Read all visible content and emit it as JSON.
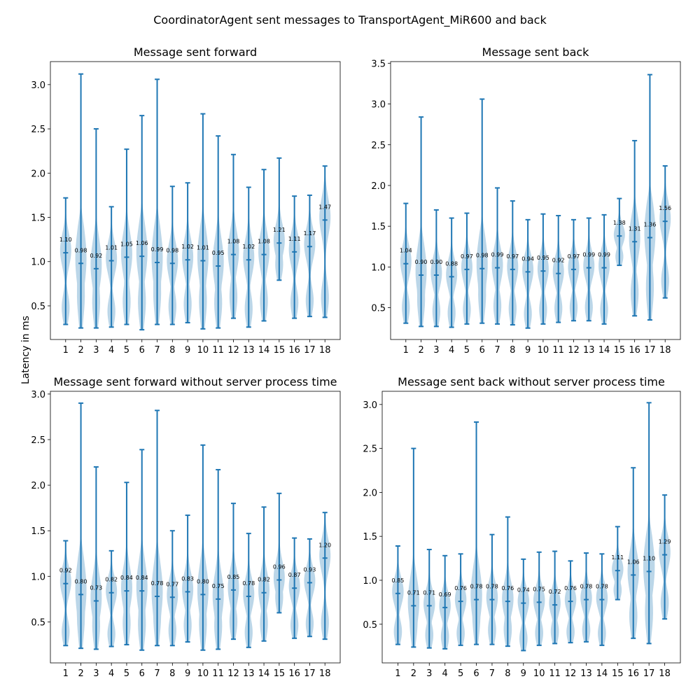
{
  "figure": {
    "suptitle": "CoordinatorAgent sent messages to TransportAgent_MiR600 and back",
    "shared_ylabel": "Latency in ms"
  },
  "colors": {
    "violin_fill": "#1f77b4",
    "violin_fill_opacity": 0.3,
    "line": "#1f77b4"
  },
  "chart_data": [
    {
      "type": "violin",
      "title": "Message sent forward",
      "xlabel": "",
      "categories": [
        "1",
        "2",
        "3",
        "4",
        "5",
        "6",
        "7",
        "8",
        "9",
        "10",
        "11",
        "12",
        "13",
        "14",
        "15",
        "16",
        "17",
        "18"
      ],
      "ylim": [
        0.12,
        3.26
      ],
      "yticks": [
        0.5,
        1.0,
        1.5,
        2.0,
        2.5,
        3.0
      ],
      "ytick_labels": [
        "0.5",
        "1.0",
        "1.5",
        "2.0",
        "2.5",
        "3.0"
      ],
      "min": [
        0.29,
        0.25,
        0.25,
        0.26,
        0.29,
        0.23,
        0.29,
        0.29,
        0.31,
        0.24,
        0.25,
        0.36,
        0.26,
        0.33,
        0.79,
        0.36,
        0.38,
        0.37
      ],
      "max": [
        1.72,
        3.12,
        2.5,
        1.62,
        2.27,
        2.65,
        3.06,
        1.85,
        1.89,
        2.67,
        2.42,
        2.21,
        1.84,
        2.04,
        2.17,
        1.74,
        1.75,
        2.08
      ],
      "mean": [
        1.1,
        0.98,
        0.92,
        1.01,
        1.05,
        1.06,
        0.99,
        0.98,
        1.02,
        1.01,
        0.95,
        1.08,
        1.02,
        1.08,
        1.21,
        1.11,
        1.17,
        1.47
      ],
      "labels": [
        "1.10",
        "0.98",
        "0.92",
        "1.01",
        "1.05",
        "1.06",
        "0.99",
        "0.98",
        "1.02",
        "1.01",
        "0.95",
        "1.08",
        "1.02",
        "1.08",
        "1.21",
        "1.11",
        "1.17",
        "1.47"
      ]
    },
    {
      "type": "violin",
      "title": "Message sent back",
      "xlabel": "",
      "categories": [
        "1",
        "2",
        "3",
        "4",
        "5",
        "6",
        "7",
        "8",
        "9",
        "10",
        "11",
        "12",
        "13",
        "14",
        "15",
        "16",
        "17",
        "18"
      ],
      "ylim": [
        0.11,
        3.52
      ],
      "yticks": [
        0.5,
        1.0,
        1.5,
        2.0,
        2.5,
        3.0,
        3.5
      ],
      "ytick_labels": [
        "0.5",
        "1.0",
        "1.5",
        "2.0",
        "2.5",
        "3.0",
        "3.5"
      ],
      "min": [
        0.31,
        0.27,
        0.27,
        0.26,
        0.3,
        0.31,
        0.3,
        0.29,
        0.25,
        0.3,
        0.32,
        0.34,
        0.34,
        0.3,
        1.02,
        0.4,
        0.35,
        0.62
      ],
      "max": [
        1.78,
        2.84,
        1.7,
        1.6,
        1.66,
        3.06,
        1.97,
        1.81,
        1.58,
        1.65,
        1.63,
        1.58,
        1.6,
        1.64,
        1.84,
        2.55,
        3.36,
        2.24
      ],
      "mean": [
        1.04,
        0.9,
        0.9,
        0.88,
        0.97,
        0.98,
        0.99,
        0.97,
        0.94,
        0.95,
        0.92,
        0.97,
        0.99,
        0.99,
        1.38,
        1.31,
        1.36,
        1.56
      ],
      "labels": [
        "1.04",
        "0.90",
        "0.90",
        "0.88",
        "0.97",
        "0.98",
        "0.99",
        "0.97",
        "0.94",
        "0.95",
        "0.92",
        "0.97",
        "0.99",
        "0.99",
        "1.38",
        "1.31",
        "1.36",
        "1.56"
      ]
    },
    {
      "type": "violin",
      "title": "Message sent forward without server process time",
      "xlabel": "",
      "categories": [
        "1",
        "2",
        "3",
        "4",
        "5",
        "6",
        "7",
        "8",
        "9",
        "10",
        "11",
        "12",
        "13",
        "14",
        "15",
        "16",
        "17",
        "18"
      ],
      "ylim": [
        0.05,
        3.03
      ],
      "yticks": [
        0.5,
        1.0,
        1.5,
        2.0,
        2.5,
        3.0
      ],
      "ytick_labels": [
        "0.5",
        "1.0",
        "1.5",
        "2.0",
        "2.5",
        "3.0"
      ],
      "min": [
        0.24,
        0.21,
        0.2,
        0.23,
        0.25,
        0.19,
        0.24,
        0.24,
        0.28,
        0.19,
        0.2,
        0.31,
        0.22,
        0.29,
        0.6,
        0.32,
        0.34,
        0.31
      ],
      "max": [
        1.39,
        2.9,
        2.2,
        1.28,
        2.03,
        2.39,
        2.82,
        1.5,
        1.67,
        2.44,
        2.17,
        1.8,
        1.47,
        1.76,
        1.91,
        1.42,
        1.41,
        1.7
      ],
      "mean": [
        0.92,
        0.8,
        0.73,
        0.82,
        0.84,
        0.84,
        0.78,
        0.77,
        0.83,
        0.8,
        0.75,
        0.85,
        0.78,
        0.82,
        0.96,
        0.87,
        0.93,
        1.2
      ],
      "labels": [
        "0.92",
        "0.80",
        "0.73",
        "0.82",
        "0.84",
        "0.84",
        "0.78",
        "0.77",
        "0.83",
        "0.80",
        "0.75",
        "0.85",
        "0.78",
        "0.82",
        "0.96",
        "0.87",
        "0.93",
        "1.20"
      ]
    },
    {
      "type": "violin",
      "title": "Message sent back without server process time",
      "xlabel": "",
      "categories": [
        "1",
        "2",
        "3",
        "4",
        "5",
        "6",
        "7",
        "8",
        "9",
        "10",
        "11",
        "12",
        "13",
        "14",
        "15",
        "16",
        "17",
        "18"
      ],
      "ylim": [
        0.06,
        3.15
      ],
      "yticks": [
        0.5,
        1.0,
        1.5,
        2.0,
        2.5,
        3.0
      ],
      "ytick_labels": [
        "0.5",
        "1.0",
        "1.5",
        "2.0",
        "2.5",
        "3.0"
      ],
      "min": [
        0.27,
        0.24,
        0.23,
        0.22,
        0.26,
        0.27,
        0.27,
        0.25,
        0.2,
        0.26,
        0.28,
        0.29,
        0.3,
        0.26,
        0.78,
        0.34,
        0.28,
        0.56
      ],
      "max": [
        1.39,
        2.5,
        1.35,
        1.28,
        1.3,
        2.8,
        1.52,
        1.72,
        1.24,
        1.32,
        1.33,
        1.22,
        1.31,
        1.3,
        1.61,
        2.28,
        3.02,
        1.97
      ],
      "mean": [
        0.85,
        0.71,
        0.71,
        0.69,
        0.76,
        0.78,
        0.78,
        0.76,
        0.74,
        0.75,
        0.72,
        0.76,
        0.78,
        0.78,
        1.11,
        1.06,
        1.1,
        1.29
      ],
      "labels": [
        "0.85",
        "0.71",
        "0.71",
        "0.69",
        "0.76",
        "0.78",
        "0.78",
        "0.76",
        "0.74",
        "0.75",
        "0.72",
        "0.76",
        "0.78",
        "0.78",
        "1.11",
        "1.06",
        "1.10",
        "1.29"
      ]
    }
  ]
}
